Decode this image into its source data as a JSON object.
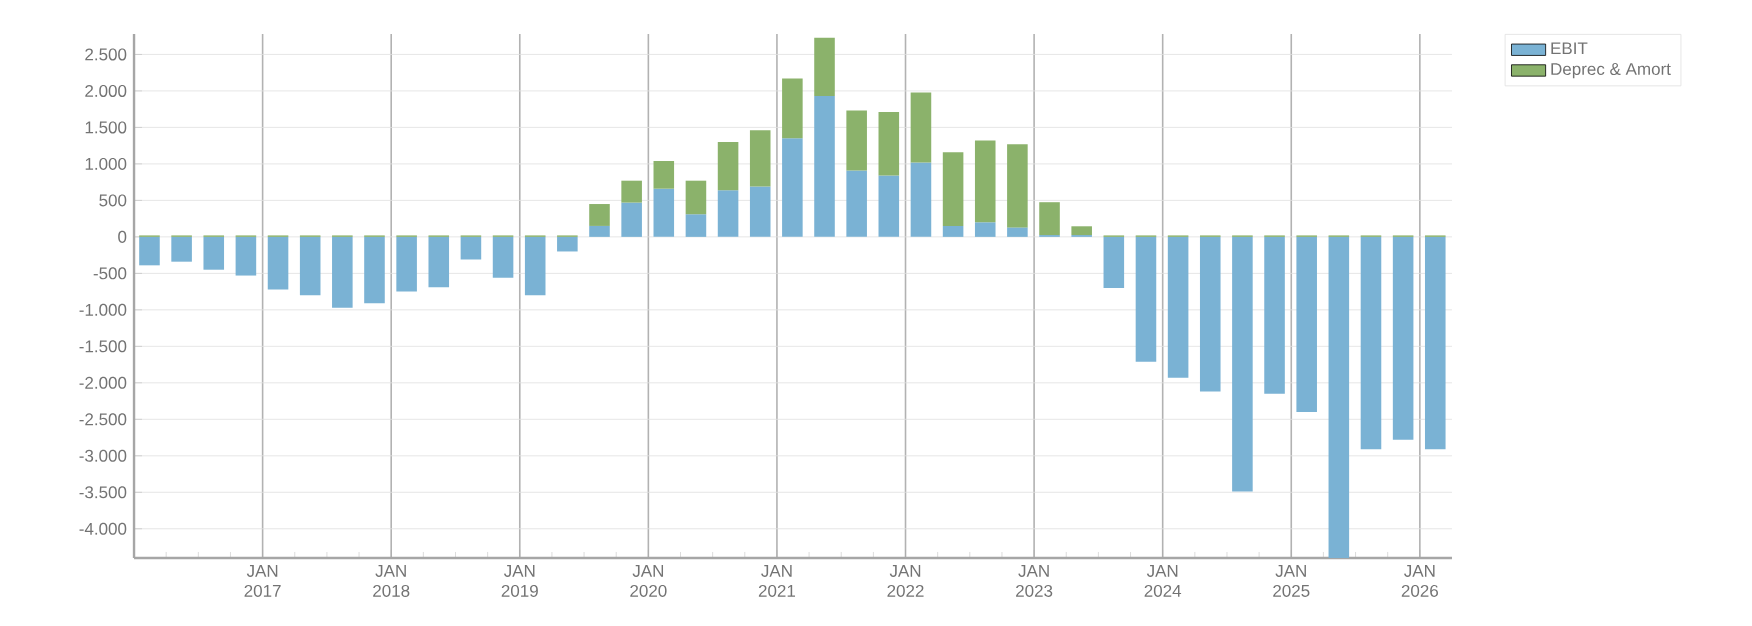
{
  "chart_data": {
    "type": "bar",
    "stacked": true,
    "grid": true,
    "legend": "top right",
    "x": [
      "2016-02-15",
      "2016-05-15",
      "2016-08-15",
      "2016-11-15",
      "2017-02-15",
      "2017-05-15",
      "2017-08-15",
      "2017-11-15",
      "2018-02-15",
      "2018-05-15",
      "2018-08-15",
      "2018-11-15",
      "2019-02-15",
      "2019-05-15",
      "2019-08-15",
      "2019-11-15",
      "2020-02-15",
      "2020-05-15",
      "2020-08-15",
      "2020-11-15",
      "2021-02-15",
      "2021-05-15",
      "2021-08-15",
      "2021-11-15",
      "2022-02-15",
      "2022-05-15",
      "2022-08-15",
      "2022-11-15",
      "2023-02-15",
      "2023-05-15",
      "2023-08-15",
      "2023-11-15",
      "2024-02-15",
      "2024-05-15",
      "2024-08-15",
      "2024-11-15",
      "2025-02-15",
      "2025-05-15",
      "2025-08-15",
      "2025-11-15",
      "2026-02-15"
    ],
    "series": [
      {
        "name": "EBIT",
        "color": "#7ab2d4",
        "values": [
          -390,
          -340,
          -450,
          -530,
          -720,
          -800,
          -970,
          -910,
          -750,
          -690,
          -310,
          -560,
          -800,
          -200,
          150,
          470,
          660,
          310,
          640,
          690,
          1350,
          1930,
          910,
          840,
          1020,
          150,
          200,
          130,
          25,
          25,
          -700,
          -1710,
          -1930,
          -2120,
          -3490,
          -2150,
          -2400,
          -4400,
          -2910,
          -2780,
          -2910
        ]
      },
      {
        "name": "Deprec & Amort",
        "color": "#8bb26b",
        "values": [
          20,
          20,
          20,
          20,
          20,
          20,
          20,
          20,
          20,
          20,
          20,
          20,
          20,
          20,
          300,
          300,
          380,
          460,
          660,
          770,
          820,
          800,
          820,
          870,
          960,
          1010,
          1120,
          1140,
          450,
          120,
          20,
          20,
          20,
          20,
          20,
          20,
          20,
          20,
          20,
          20,
          20
        ]
      }
    ],
    "xlim": [
      "2016-01-01",
      "2026-04-01"
    ],
    "xticks": [
      {
        "value": "2016-04",
        "label": null
      },
      {
        "value": "2016-07",
        "label": null
      },
      {
        "value": "2016-10",
        "label": null
      },
      {
        "value": "2017-01",
        "label": "JAN 2017"
      },
      {
        "value": "2017-04",
        "label": null
      },
      {
        "value": "2017-07",
        "label": null
      },
      {
        "value": "2017-10",
        "label": null
      },
      {
        "value": "2018-01",
        "label": "JAN 2018"
      },
      {
        "value": "2018-04",
        "label": null
      },
      {
        "value": "2018-07",
        "label": null
      },
      {
        "value": "2018-10",
        "label": null
      },
      {
        "value": "2019-01",
        "label": "JAN 2019"
      },
      {
        "value": "2019-04",
        "label": null
      },
      {
        "value": "2019-07",
        "label": null
      },
      {
        "value": "2019-10",
        "label": null
      },
      {
        "value": "2020-01",
        "label": "JAN 2020"
      },
      {
        "value": "2020-04",
        "label": null
      },
      {
        "value": "2020-07",
        "label": null
      },
      {
        "value": "2020-10",
        "label": null
      },
      {
        "value": "2021-01",
        "label": "JAN 2021"
      },
      {
        "value": "2021-04",
        "label": null
      },
      {
        "value": "2021-07",
        "label": null
      },
      {
        "value": "2021-10",
        "label": null
      },
      {
        "value": "2022-01",
        "label": "JAN 2022"
      },
      {
        "value": "2022-04",
        "label": null
      },
      {
        "value": "2022-07",
        "label": null
      },
      {
        "value": "2022-10",
        "label": null
      },
      {
        "value": "2023-01",
        "label": "JAN 2023"
      },
      {
        "value": "2023-04",
        "label": null
      },
      {
        "value": "2023-07",
        "label": null
      },
      {
        "value": "2023-10",
        "label": null
      },
      {
        "value": "2024-01",
        "label": "JAN 2024"
      },
      {
        "value": "2024-04",
        "label": null
      },
      {
        "value": "2024-07",
        "label": null
      },
      {
        "value": "2024-10",
        "label": null
      },
      {
        "value": "2025-01",
        "label": "JAN 2025"
      },
      {
        "value": "2025-04",
        "label": null
      },
      {
        "value": "2025-07",
        "label": null
      },
      {
        "value": "2025-10",
        "label": null
      },
      {
        "value": "2026-01",
        "label": "JAN 2026"
      }
    ],
    "ylim": [
      -4400,
      2780
    ],
    "yticks": [
      {
        "value": -4000,
        "label": "-4.000"
      },
      {
        "value": -3500,
        "label": "-3.500"
      },
      {
        "value": -3000,
        "label": "-3.000"
      },
      {
        "value": -2500,
        "label": "-2.500"
      },
      {
        "value": -2000,
        "label": "-2.000"
      },
      {
        "value": -1500,
        "label": "-1.500"
      },
      {
        "value": -1000,
        "label": "-1.000"
      },
      -500,
      0,
      500,
      {
        "value": 1000,
        "label": "1.000"
      },
      {
        "value": 1500,
        "label": "1.500"
      },
      {
        "value": 2000,
        "label": "2.000"
      },
      {
        "value": 2500,
        "label": "2.500"
      }
    ]
  }
}
